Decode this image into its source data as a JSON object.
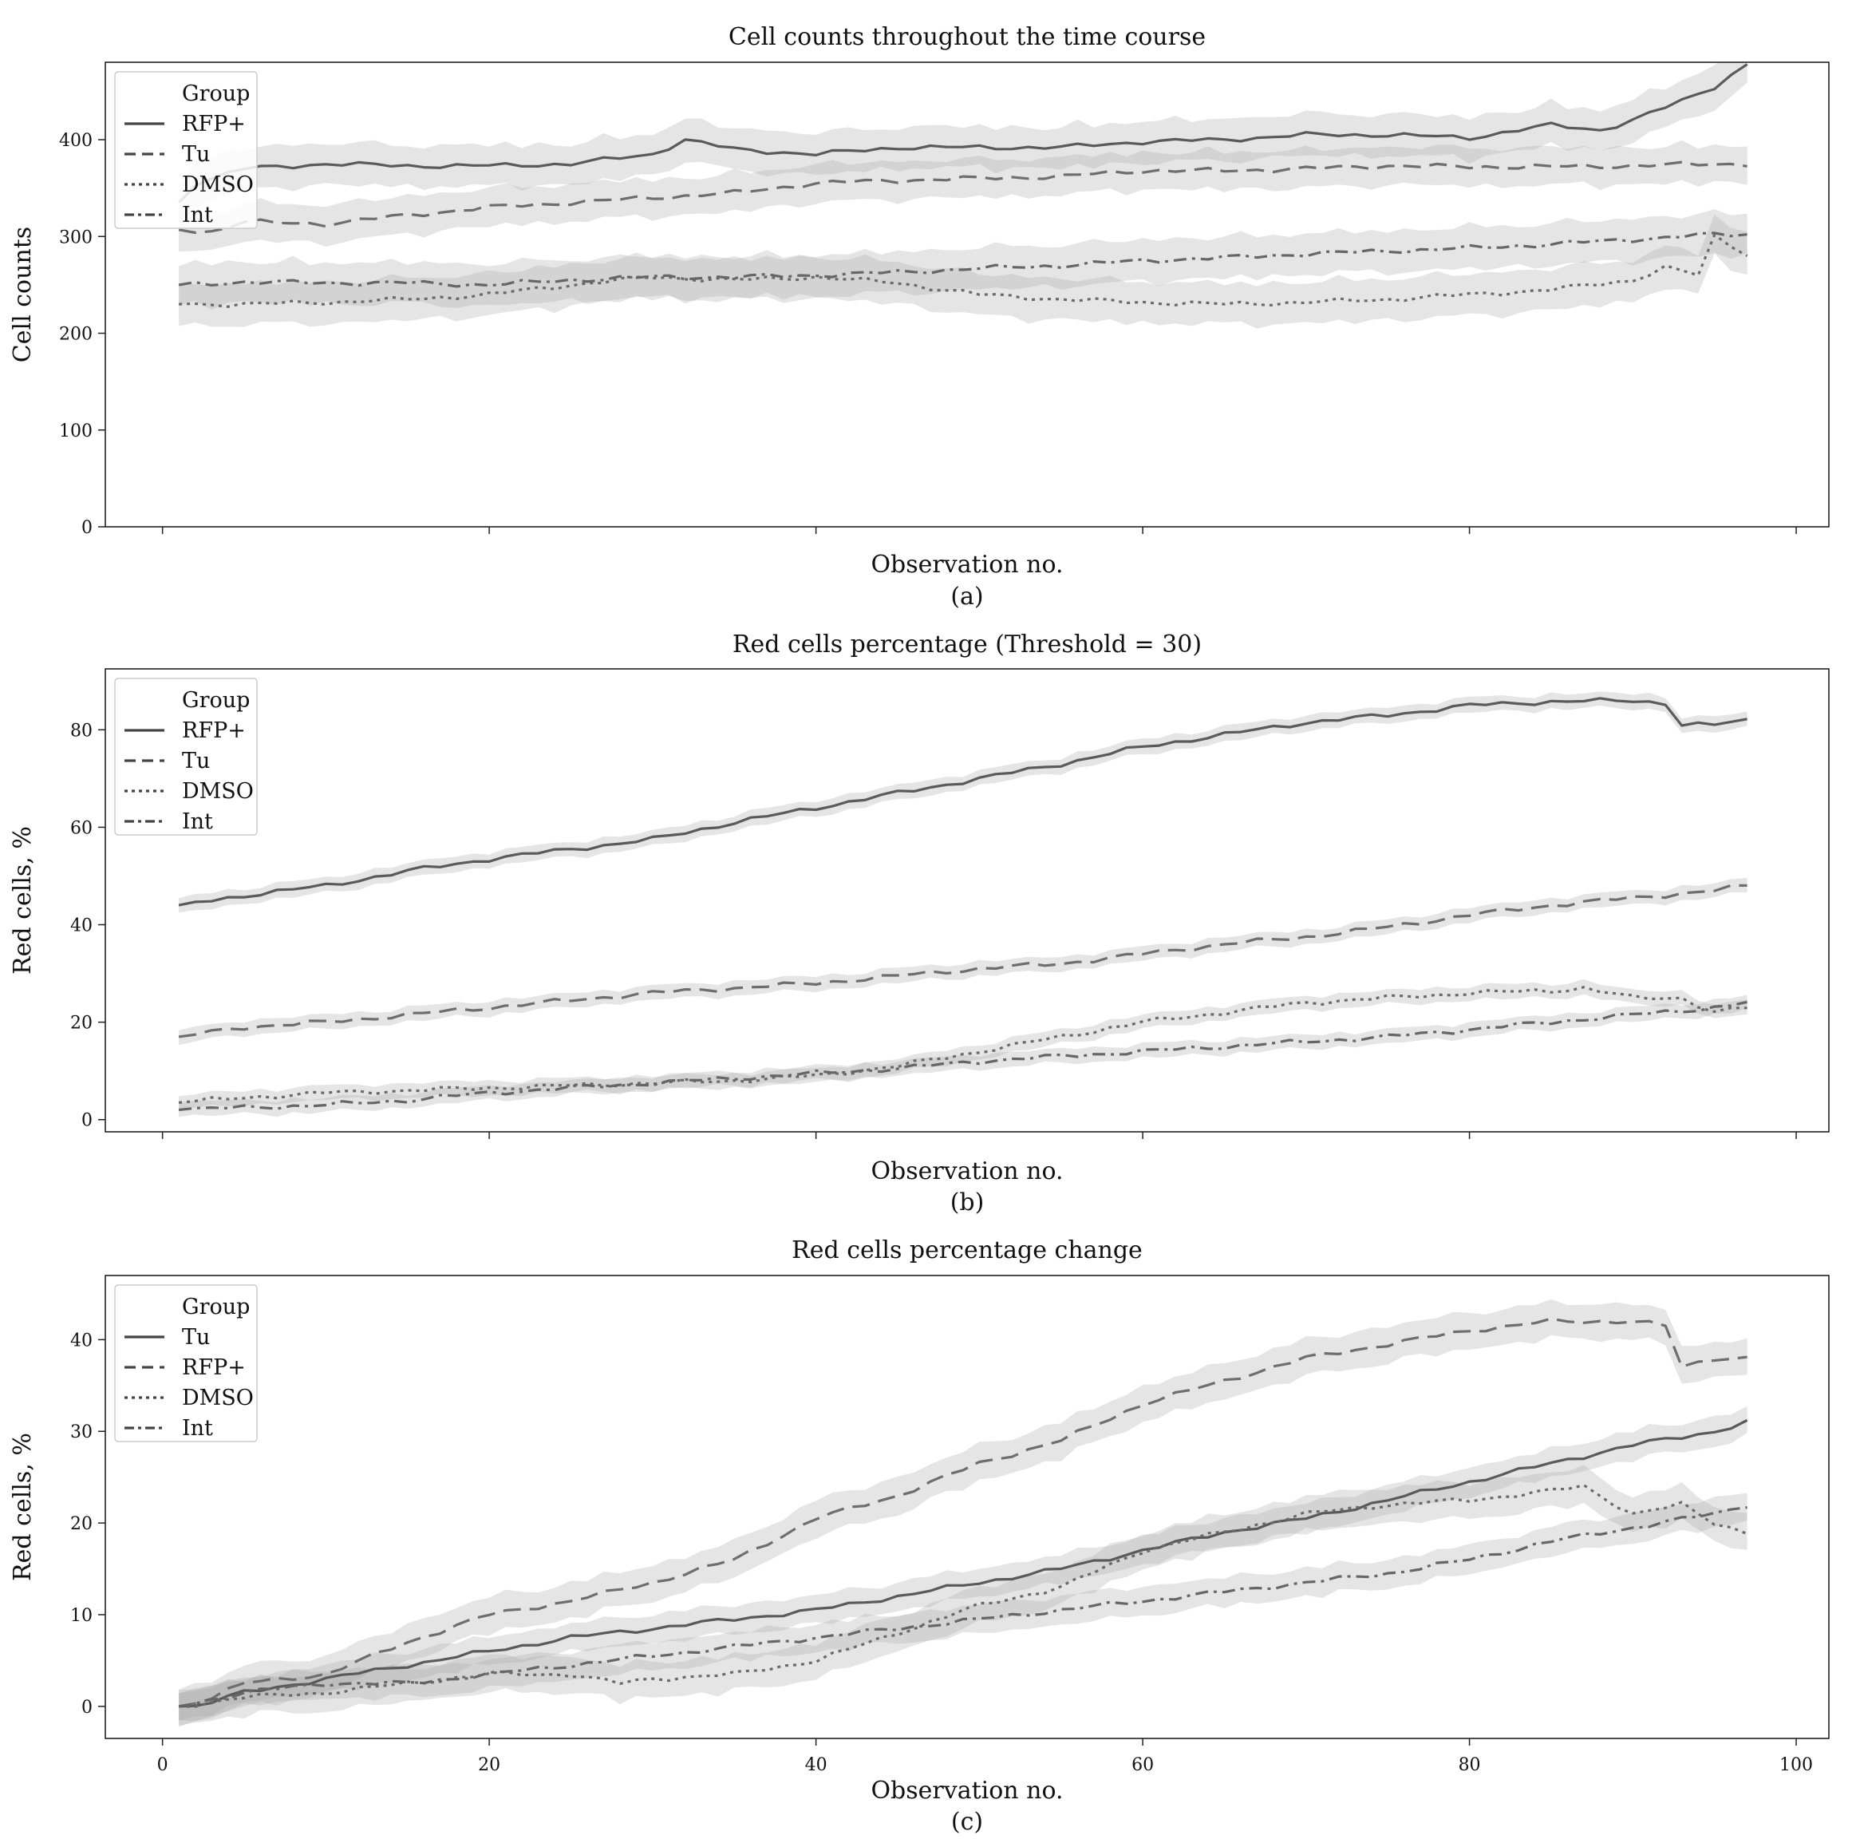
{
  "chart_data": [
    {
      "type": "line",
      "title": "Cell counts throughout the time course",
      "xlabel": "Observation no.",
      "ylabel": "Cell counts",
      "caption": "(a)",
      "xlim": [
        -3.5,
        102
      ],
      "ylim": [
        0,
        480
      ],
      "yticks": [
        0,
        100,
        200,
        300,
        400
      ],
      "xticks": [
        0,
        20,
        40,
        60,
        80,
        100
      ],
      "show_xtick_labels": false,
      "legend": {
        "title": "Group",
        "position": "upper-left"
      },
      "series": [
        {
          "name": "RFP+",
          "style": "solid",
          "band": 22,
          "x": [
            1,
            2,
            5,
            10,
            15,
            20,
            25,
            30,
            32,
            35,
            40,
            45,
            50,
            55,
            60,
            65,
            70,
            75,
            80,
            85,
            88,
            90,
            93,
            95,
            97
          ],
          "y": [
            335,
            355,
            370,
            375,
            373,
            373,
            375,
            385,
            400,
            390,
            385,
            392,
            392,
            392,
            398,
            400,
            405,
            405,
            402,
            415,
            410,
            420,
            440,
            455,
            478
          ]
        },
        {
          "name": "Tu",
          "style": "dashed",
          "band": 20,
          "x": [
            1,
            3,
            5,
            10,
            15,
            20,
            25,
            30,
            35,
            40,
            45,
            50,
            55,
            60,
            65,
            70,
            75,
            80,
            85,
            90,
            95,
            97
          ],
          "y": [
            307,
            305,
            315,
            313,
            322,
            330,
            335,
            340,
            345,
            355,
            358,
            360,
            362,
            368,
            368,
            370,
            373,
            372,
            372,
            373,
            375,
            375
          ]
        },
        {
          "name": "DMSO",
          "style": "dotted",
          "band": 22,
          "x": [
            1,
            5,
            10,
            15,
            20,
            25,
            30,
            35,
            40,
            45,
            50,
            55,
            60,
            65,
            70,
            75,
            80,
            85,
            90,
            92,
            94,
            95,
            97
          ],
          "y": [
            230,
            230,
            232,
            235,
            240,
            250,
            258,
            255,
            258,
            252,
            240,
            235,
            232,
            230,
            232,
            235,
            240,
            245,
            255,
            268,
            260,
            300,
            282
          ]
        },
        {
          "name": "Int",
          "style": "dashdot",
          "band": 22,
          "x": [
            1,
            5,
            10,
            15,
            20,
            25,
            30,
            35,
            40,
            45,
            50,
            55,
            60,
            65,
            70,
            75,
            80,
            85,
            90,
            95,
            97
          ],
          "y": [
            250,
            253,
            252,
            252,
            250,
            255,
            258,
            258,
            260,
            263,
            267,
            270,
            275,
            278,
            282,
            285,
            288,
            292,
            297,
            302,
            302
          ]
        }
      ]
    },
    {
      "type": "line",
      "title": "Red cells percentage (Threshold = 30)",
      "xlabel": "Observation no.",
      "ylabel": "Red cells, %",
      "caption": "(b)",
      "xlim": [
        -3.5,
        102
      ],
      "ylim": [
        -2.5,
        92.5
      ],
      "yticks": [
        0,
        20,
        40,
        60,
        80
      ],
      "xticks": [
        0,
        20,
        40,
        60,
        80,
        100
      ],
      "show_xtick_labels": false,
      "legend": {
        "title": "Group",
        "position": "upper-left"
      },
      "series": [
        {
          "name": "RFP+",
          "style": "solid",
          "band": 1.6,
          "x": [
            1,
            5,
            10,
            15,
            20,
            25,
            30,
            35,
            40,
            45,
            50,
            55,
            60,
            65,
            70,
            75,
            80,
            85,
            90,
            92,
            93,
            95,
            97
          ],
          "y": [
            44,
            46,
            48,
            51,
            53.5,
            55.5,
            57.5,
            61,
            64,
            67,
            70,
            73,
            76.5,
            79,
            81.5,
            83,
            85,
            85.8,
            86,
            85.5,
            81,
            81,
            82
          ]
        },
        {
          "name": "Tu",
          "style": "dashed",
          "band": 1.5,
          "x": [
            1,
            5,
            10,
            15,
            20,
            25,
            30,
            35,
            40,
            45,
            50,
            55,
            60,
            65,
            70,
            75,
            80,
            85,
            90,
            95,
            97
          ],
          "y": [
            17,
            19,
            20,
            21.5,
            23,
            24.5,
            26,
            27,
            28,
            29.5,
            31,
            32,
            34,
            36,
            37.5,
            39.5,
            42,
            44,
            45.5,
            47,
            48
          ]
        },
        {
          "name": "DMSO",
          "style": "dotted",
          "band": 1.5,
          "x": [
            1,
            5,
            10,
            15,
            20,
            25,
            30,
            35,
            40,
            45,
            50,
            55,
            60,
            65,
            70,
            75,
            80,
            85,
            87,
            90,
            93,
            95,
            97
          ],
          "y": [
            3.5,
            4.5,
            5.5,
            6,
            6.5,
            7,
            7.5,
            8,
            9,
            11,
            14,
            17,
            20,
            22,
            24,
            25,
            26,
            26.5,
            27,
            25,
            25,
            22,
            23
          ]
        },
        {
          "name": "Int",
          "style": "dashdot",
          "band": 1.5,
          "x": [
            1,
            5,
            10,
            15,
            20,
            25,
            30,
            35,
            40,
            45,
            50,
            55,
            60,
            65,
            70,
            75,
            80,
            85,
            90,
            95,
            97
          ],
          "y": [
            2,
            2.5,
            3,
            4,
            5.5,
            6.5,
            7.5,
            8.5,
            9.5,
            10.5,
            12,
            13,
            14,
            15,
            16,
            17,
            18.5,
            20,
            21.5,
            23,
            24
          ]
        }
      ]
    },
    {
      "type": "line",
      "title": "Red cells percentage change",
      "xlabel": "Observation no.",
      "ylabel": "Red cells, %",
      "caption": "(c)",
      "xlim": [
        -3.5,
        102
      ],
      "ylim": [
        -3.5,
        47
      ],
      "yticks": [
        0,
        10,
        20,
        30,
        40
      ],
      "xticks": [
        0,
        20,
        40,
        60,
        80,
        100
      ],
      "show_xtick_labels": true,
      "legend": {
        "title": "Group",
        "position": "upper-left"
      },
      "series": [
        {
          "name": "Tu",
          "style": "solid",
          "band": 1.6,
          "x": [
            1,
            2,
            5,
            10,
            15,
            20,
            25,
            30,
            35,
            40,
            45,
            50,
            55,
            60,
            65,
            70,
            75,
            80,
            85,
            90,
            95,
            97
          ],
          "y": [
            0,
            0,
            1.5,
            3,
            4.5,
            6,
            7.5,
            8.5,
            9.5,
            10.5,
            12,
            13.5,
            15,
            17,
            19,
            20.5,
            22.5,
            24.5,
            26.5,
            28.5,
            30,
            31
          ]
        },
        {
          "name": "RFP+",
          "style": "dashed",
          "band": 2.0,
          "x": [
            1,
            3,
            5,
            10,
            15,
            20,
            25,
            30,
            35,
            40,
            45,
            50,
            55,
            60,
            65,
            70,
            75,
            80,
            85,
            90,
            92,
            93,
            95,
            97
          ],
          "y": [
            0,
            1,
            2.5,
            3.5,
            7,
            10,
            11.5,
            13.5,
            16,
            20.5,
            23,
            26.5,
            29,
            33,
            35.5,
            38,
            39.5,
            41,
            42,
            42,
            41.5,
            37,
            38,
            38
          ]
        },
        {
          "name": "DMSO",
          "style": "dotted",
          "band": 2.0,
          "x": [
            1,
            5,
            10,
            15,
            20,
            25,
            28,
            30,
            35,
            40,
            45,
            50,
            55,
            60,
            65,
            70,
            75,
            80,
            85,
            87,
            90,
            93,
            95,
            97
          ],
          "y": [
            0,
            1,
            1.5,
            2.5,
            3.5,
            3.5,
            2.5,
            3,
            3.5,
            5,
            8,
            11,
            13,
            17,
            19,
            21,
            22,
            22.5,
            23.5,
            24,
            21,
            22,
            20,
            19
          ]
        },
        {
          "name": "Int",
          "style": "dashdot",
          "band": 1.6,
          "x": [
            1,
            5,
            10,
            15,
            20,
            25,
            30,
            35,
            40,
            45,
            50,
            55,
            60,
            65,
            70,
            75,
            80,
            85,
            90,
            95,
            97
          ],
          "y": [
            0,
            1.5,
            2.5,
            2.5,
            3.5,
            4.5,
            5.5,
            6.5,
            7.5,
            8.5,
            9.5,
            10.5,
            11.5,
            12.5,
            13.5,
            14.5,
            16,
            18,
            19.5,
            21,
            22
          ]
        }
      ]
    }
  ]
}
